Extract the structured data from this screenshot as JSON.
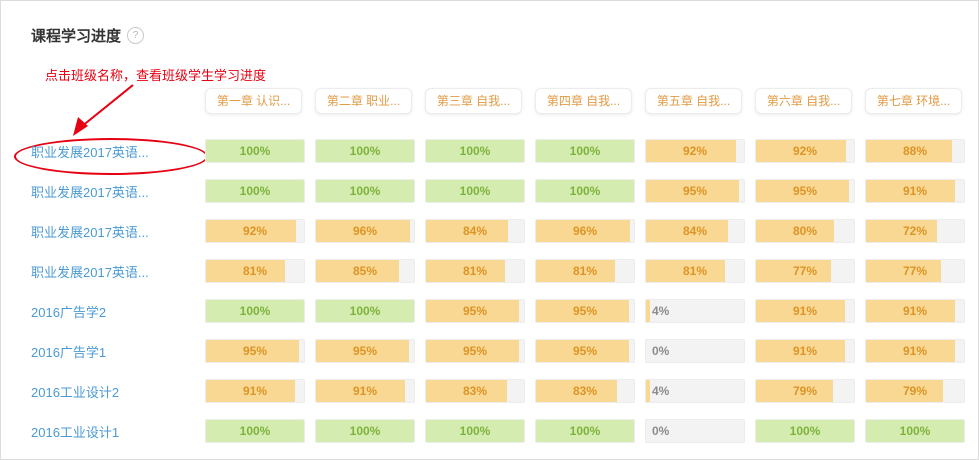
{
  "header": {
    "title": "课程学习进度",
    "help_icon": "?"
  },
  "annotation": {
    "text": "点击班级名称，查看班级学生学习进度"
  },
  "table": {
    "columns": [
      "第一章 认识...",
      "第二章 职业...",
      "第三章 自我...",
      "第四章 自我...",
      "第五章 自我...",
      "第六章 自我...",
      "第七章 环境..."
    ],
    "rows": [
      {
        "label": "职业发展2017英语...",
        "values": [
          100,
          100,
          100,
          100,
          92,
          92,
          88
        ]
      },
      {
        "label": "职业发展2017英语...",
        "values": [
          100,
          100,
          100,
          100,
          95,
          95,
          91
        ]
      },
      {
        "label": "职业发展2017英语...",
        "values": [
          92,
          96,
          84,
          96,
          84,
          80,
          72
        ]
      },
      {
        "label": "职业发展2017英语...",
        "values": [
          81,
          85,
          81,
          81,
          81,
          77,
          77
        ]
      },
      {
        "label": "2016广告学2",
        "values": [
          100,
          100,
          95,
          95,
          4,
          91,
          91
        ]
      },
      {
        "label": "2016广告学1",
        "values": [
          95,
          95,
          95,
          95,
          0,
          91,
          91
        ]
      },
      {
        "label": "2016工业设计2",
        "values": [
          91,
          91,
          83,
          83,
          4,
          79,
          79
        ]
      },
      {
        "label": "2016工业设计1",
        "values": [
          100,
          100,
          100,
          100,
          0,
          100,
          100
        ]
      }
    ]
  },
  "colors": {
    "green_fill": "#d4ecb0",
    "green_text": "#7fb23d",
    "orange_fill": "#f8d893",
    "orange_text": "#dd9426",
    "track": "#f3f3f3",
    "low_text": "#8c8c8c",
    "link": "#4a9ad4",
    "accent_red": "#e60012",
    "header_text": "#e09b45"
  }
}
